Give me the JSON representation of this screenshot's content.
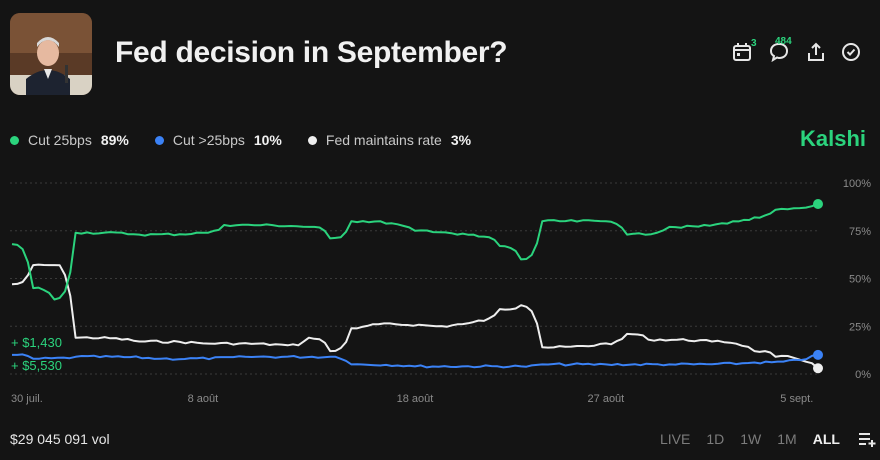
{
  "header": {
    "title": "Fed decision in September?",
    "calendar_badge": "3",
    "comments_badge": "484"
  },
  "brand": "Kalshi",
  "legend": [
    {
      "label": "Cut 25bps",
      "value": "89%",
      "color": "#2bd37d"
    },
    {
      "label": "Cut >25bps",
      "value": "10%",
      "color": "#3b82f6"
    },
    {
      "label": "Fed maintains rate",
      "value": "3%",
      "color": "#eeeeee"
    }
  ],
  "annotations": [
    {
      "text": "+ $1,430",
      "color": "#2bd37d"
    },
    {
      "text": "+ $5,530",
      "color": "#2bd37d"
    }
  ],
  "footer": {
    "volume": "$29 045 091 vol",
    "ranges": [
      "LIVE",
      "1D",
      "1W",
      "1M",
      "ALL"
    ],
    "active_range": "ALL"
  },
  "chart_data": {
    "type": "line",
    "x_ticks": [
      "30 juil.",
      "8 août",
      "18 août",
      "27 août",
      "5 sept."
    ],
    "y_ticks": [
      "100%",
      "75%",
      "50%",
      "25%",
      "0%"
    ],
    "ylim": [
      0,
      100
    ],
    "grid": true,
    "series": [
      {
        "name": "Cut 25bps",
        "color": "#2bd37d",
        "points": [
          [
            "2024-07-30",
            68
          ],
          [
            "2024-07-31",
            45
          ],
          [
            "2024-08-01",
            39
          ],
          [
            "2024-08-02",
            74
          ],
          [
            "2024-08-05",
            73
          ],
          [
            "2024-08-08",
            74
          ],
          [
            "2024-08-09",
            78
          ],
          [
            "2024-08-13",
            77
          ],
          [
            "2024-08-14",
            71
          ],
          [
            "2024-08-15",
            80
          ],
          [
            "2024-08-18",
            75
          ],
          [
            "2024-08-20",
            73
          ],
          [
            "2024-08-21",
            72
          ],
          [
            "2024-08-22",
            67
          ],
          [
            "2024-08-23",
            60
          ],
          [
            "2024-08-24",
            80
          ],
          [
            "2024-08-27",
            80
          ],
          [
            "2024-08-28",
            73
          ],
          [
            "2024-08-30",
            77
          ],
          [
            "2024-09-02",
            80
          ],
          [
            "2024-09-03",
            82
          ],
          [
            "2024-09-04",
            86
          ],
          [
            "2024-09-06",
            89
          ]
        ]
      },
      {
        "name": "Cut >25bps",
        "color": "#3b82f6",
        "points": [
          [
            "2024-07-30",
            10
          ],
          [
            "2024-07-31",
            8
          ],
          [
            "2024-08-02",
            9
          ],
          [
            "2024-08-06",
            8
          ],
          [
            "2024-08-10",
            9
          ],
          [
            "2024-08-14",
            9
          ],
          [
            "2024-08-15",
            5
          ],
          [
            "2024-08-18",
            4
          ],
          [
            "2024-08-23",
            4
          ],
          [
            "2024-08-24",
            5
          ],
          [
            "2024-08-27",
            5
          ],
          [
            "2024-08-30",
            5
          ],
          [
            "2024-09-03",
            6
          ],
          [
            "2024-09-06",
            10
          ]
        ]
      },
      {
        "name": "Fed maintains rate",
        "color": "#eeeeee",
        "points": [
          [
            "2024-07-30",
            47
          ],
          [
            "2024-07-31",
            57
          ],
          [
            "2024-08-01",
            57
          ],
          [
            "2024-08-02",
            19
          ],
          [
            "2024-08-05",
            17
          ],
          [
            "2024-08-08",
            16
          ],
          [
            "2024-08-12",
            15
          ],
          [
            "2024-08-13",
            19
          ],
          [
            "2024-08-14",
            12
          ],
          [
            "2024-08-15",
            24
          ],
          [
            "2024-08-16",
            26
          ],
          [
            "2024-08-19",
            25
          ],
          [
            "2024-08-20",
            26
          ],
          [
            "2024-08-21",
            28
          ],
          [
            "2024-08-22",
            34
          ],
          [
            "2024-08-23",
            36
          ],
          [
            "2024-08-24",
            14
          ],
          [
            "2024-08-27",
            16
          ],
          [
            "2024-08-28",
            21
          ],
          [
            "2024-08-29",
            18
          ],
          [
            "2024-09-01",
            17
          ],
          [
            "2024-09-03",
            12
          ],
          [
            "2024-09-04",
            9
          ],
          [
            "2024-09-06",
            3
          ]
        ]
      }
    ]
  }
}
